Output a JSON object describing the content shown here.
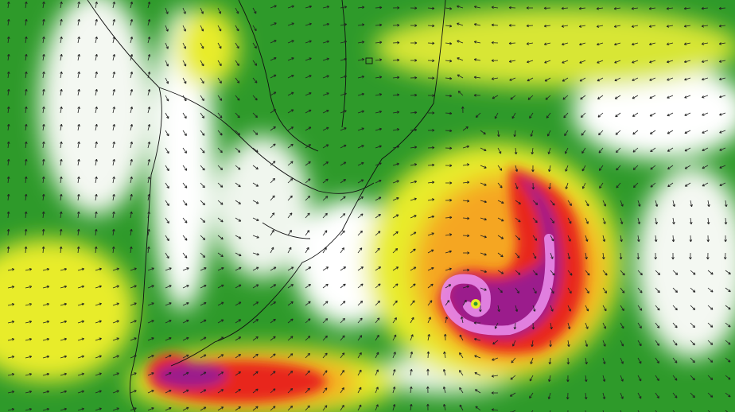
{
  "map": {
    "kind": "wind-speed-field",
    "overlay": "wind-direction-arrows",
    "features": [
      "coastlines",
      "country-borders",
      "state-borders",
      "extratropical-cyclone"
    ],
    "color_scale": {
      "calm": "#ffffff",
      "light": "#b9e3b0",
      "moderate": "#2e9a2a",
      "fresh": "#e8ec2a",
      "strong": "#f5a623",
      "gale": "#e8281e",
      "storm": "#9b1f8c",
      "extreme": "#e88be8"
    },
    "arrow_color": "#222222",
    "border_color": "#111111"
  }
}
